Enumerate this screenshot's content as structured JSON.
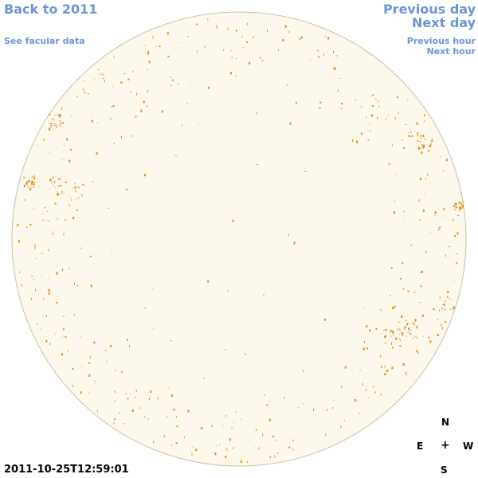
{
  "nav": {
    "back_label": "Back to 2011",
    "facular_label": "See facular data",
    "previous_day_label": "Previous day",
    "next_day_label": "Next day",
    "previous_hour_label": "Previous hour",
    "next_hour_label": "Next hour"
  },
  "compass": {
    "n": "N",
    "e": "E",
    "center": "+",
    "w": "W",
    "s": "S"
  },
  "timestamp": "2011-10-25T12:59:01",
  "colors": {
    "disk_fill": "#fdf8ec",
    "disk_edge": "#cdbfa3",
    "spot": "#e08a14",
    "link": "#6b94d6"
  }
}
